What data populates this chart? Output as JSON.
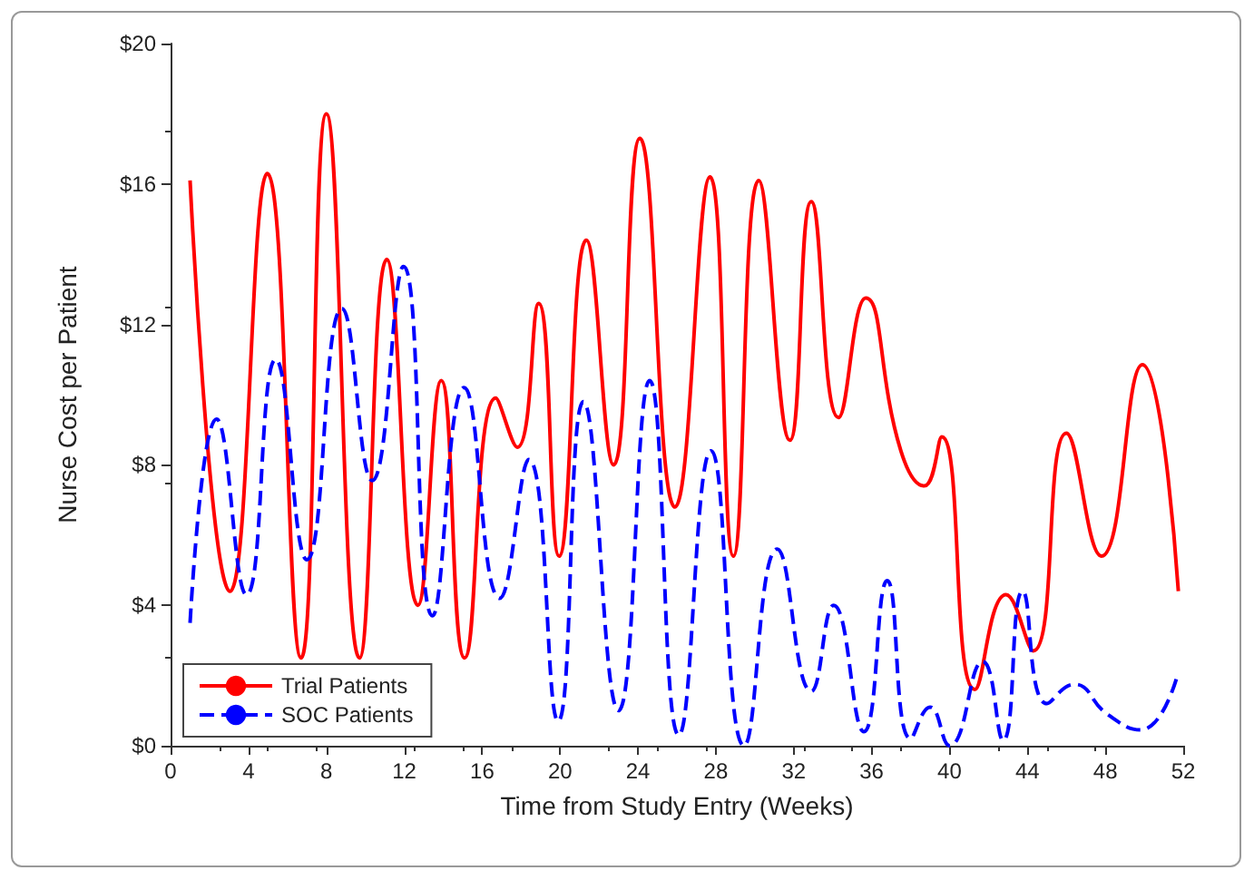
{
  "chart_data": {
    "type": "line",
    "xlabel": "Time from Study Entry (Weeks)",
    "ylabel": "Nurse Cost per Patient",
    "xlim": [
      0,
      52
    ],
    "xticks": [
      0,
      4,
      8,
      12,
      16,
      20,
      24,
      28,
      32,
      36,
      40,
      44,
      48,
      52
    ],
    "ylim": [
      0,
      20
    ],
    "yticks": [
      {
        "value": 0,
        "label": "$0"
      },
      {
        "value": 4,
        "label": "$4"
      },
      {
        "value": 8,
        "label": "$8"
      },
      {
        "value": 12,
        "label": "$12"
      },
      {
        "value": 16,
        "label": "$16"
      },
      {
        "value": 20,
        "label": "$20"
      }
    ],
    "grid": false,
    "legend": "bottom left",
    "marker": "none",
    "series": [
      {
        "name": "Trial Patients",
        "color": "#ff0000",
        "line_style": "solid",
        "x": [
          1,
          3.05,
          4.97,
          6.7,
          8,
          9.7,
          11.1,
          12.7,
          13.9,
          15.1,
          16.7,
          17.8,
          18.9,
          19.95,
          21.35,
          22.75,
          24.1,
          25.9,
          27.7,
          28.9,
          30.2,
          31.8,
          32.9,
          34.3,
          35.7,
          37.5,
          38.7,
          39.6,
          41.3,
          42.9,
          44.3,
          46,
          47.8,
          49.9,
          51.75
        ],
        "values": [
          16.1,
          4.4,
          16.3,
          2.5,
          18,
          2.5,
          13.85,
          4,
          10.4,
          2.5,
          9.9,
          8.5,
          12.6,
          5.4,
          14.4,
          8,
          17.3,
          6.8,
          16.2,
          5.4,
          16.1,
          8.7,
          15.5,
          9.35,
          12.75,
          8.4,
          7.4,
          8.8,
          1.6,
          4.3,
          2.7,
          8.9,
          5.4,
          10.85,
          4.4
        ]
      },
      {
        "name": "SOC Patients",
        "color": "#0000ff",
        "line_style": "dashed",
        "x": [
          1,
          2.36,
          3.9,
          5.4,
          7,
          8.8,
          10.35,
          11.96,
          13.45,
          15.07,
          16.9,
          18.4,
          19.9,
          21.2,
          23,
          24.6,
          26.1,
          27.75,
          29.45,
          31.15,
          32.9,
          34.05,
          35.6,
          36.8,
          38,
          39,
          40,
          41.7,
          42.75,
          43.75,
          45,
          46.4,
          48.1,
          49.8,
          51.75
        ],
        "values": [
          3.5,
          9.3,
          4.3,
          11,
          5.3,
          12.45,
          7.55,
          13.65,
          3.7,
          10.2,
          4.2,
          8.15,
          0.7,
          9.8,
          1,
          10.4,
          0.3,
          8.4,
          0,
          5.6,
          1.55,
          4,
          0.4,
          4.7,
          0.2,
          1.1,
          0,
          2.4,
          0.15,
          4.4,
          1.2,
          1.75,
          0.9,
          0.45,
          2.1
        ]
      }
    ]
  }
}
